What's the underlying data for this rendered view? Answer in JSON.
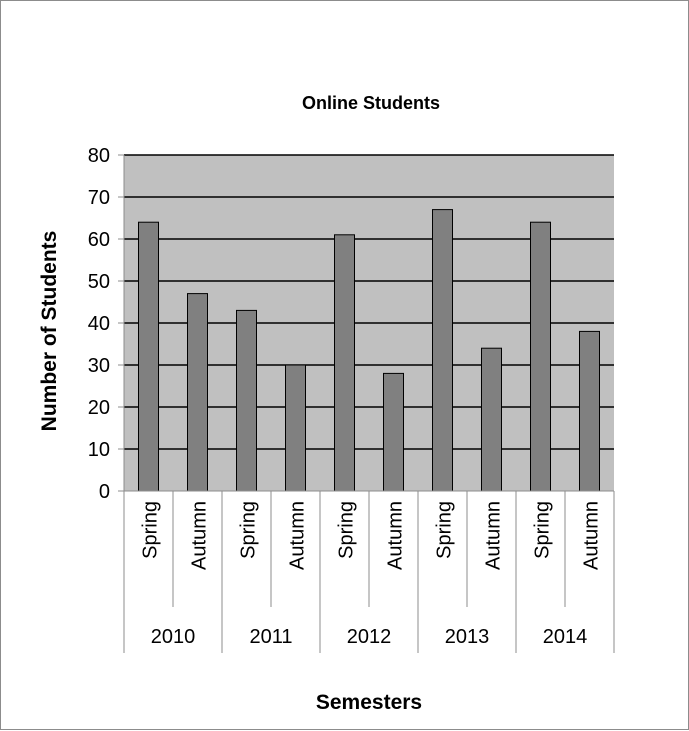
{
  "chart_data": {
    "type": "bar",
    "title": "Online Students",
    "xlabel": "Semesters",
    "ylabel": "Number of Students",
    "ylim": [
      0,
      80
    ],
    "yticks": [
      0,
      10,
      20,
      30,
      40,
      50,
      60,
      70,
      80
    ],
    "grid": true,
    "legend": "none",
    "groups": [
      "2010",
      "2011",
      "2012",
      "2013",
      "2014"
    ],
    "categories": [
      "Spring",
      "Autumn",
      "Spring",
      "Autumn",
      "Spring",
      "Autumn",
      "Spring",
      "Autumn",
      "Spring",
      "Autumn"
    ],
    "values": [
      64,
      47,
      43,
      30,
      61,
      28,
      67,
      34,
      64,
      38
    ],
    "colors": {
      "bar": "#808080",
      "plot_background": "#c0c0c0",
      "gridline": "#000000"
    }
  }
}
